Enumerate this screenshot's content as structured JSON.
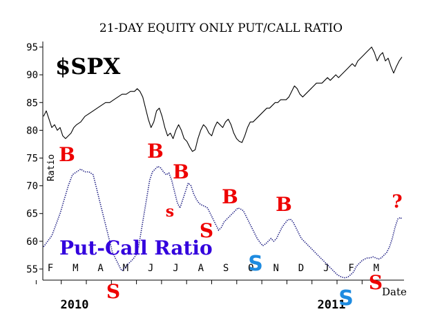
{
  "chart_data": {
    "type": "line",
    "title": "21-DAY EQUITY ONLY PUT/CALL RATIO",
    "ylabel": "Ratio",
    "xlabel": "Date",
    "ylim": [
      53,
      96
    ],
    "yticks": [
      55,
      60,
      65,
      70,
      75,
      80,
      85,
      90,
      95
    ],
    "month_labels": [
      "F",
      "M",
      "A",
      "M",
      "J",
      "J",
      "A",
      "S",
      "O",
      "N",
      "D",
      "J",
      "F",
      "M"
    ],
    "year_labels": [
      "2010",
      "2011"
    ],
    "grid": false,
    "series": [
      {
        "name": "$SPX",
        "color": "#000000",
        "points": [
          [
            0,
            82.5
          ],
          [
            2,
            83.5
          ],
          [
            4,
            82
          ],
          [
            6,
            80.5
          ],
          [
            8,
            81
          ],
          [
            10,
            80
          ],
          [
            12,
            80.5
          ],
          [
            14,
            79
          ],
          [
            16,
            78.5
          ],
          [
            18,
            79
          ],
          [
            20,
            79.5
          ],
          [
            22,
            80.5
          ],
          [
            24,
            81
          ],
          [
            27,
            81.5
          ],
          [
            30,
            82.5
          ],
          [
            33,
            83
          ],
          [
            36,
            83.5
          ],
          [
            39,
            84
          ],
          [
            42,
            84.5
          ],
          [
            45,
            85
          ],
          [
            48,
            85
          ],
          [
            51,
            85.5
          ],
          [
            54,
            86
          ],
          [
            57,
            86.5
          ],
          [
            60,
            86.5
          ],
          [
            63,
            87
          ],
          [
            66,
            87
          ],
          [
            68,
            87.5
          ],
          [
            70,
            87
          ],
          [
            72,
            86
          ],
          [
            74,
            84
          ],
          [
            76,
            82
          ],
          [
            78,
            80.5
          ],
          [
            80,
            81.5
          ],
          [
            82,
            83.5
          ],
          [
            84,
            84
          ],
          [
            86,
            82.5
          ],
          [
            88,
            80.5
          ],
          [
            90,
            79
          ],
          [
            92,
            79.5
          ],
          [
            94,
            78.5
          ],
          [
            96,
            80
          ],
          [
            98,
            81
          ],
          [
            100,
            80
          ],
          [
            102,
            78.5
          ],
          [
            104,
            78
          ],
          [
            106,
            77
          ],
          [
            108,
            76.2
          ],
          [
            110,
            76.5
          ],
          [
            112,
            78.5
          ],
          [
            114,
            80
          ],
          [
            116,
            81
          ],
          [
            118,
            80.5
          ],
          [
            120,
            79.5
          ],
          [
            122,
            79
          ],
          [
            124,
            80.5
          ],
          [
            126,
            81.5
          ],
          [
            128,
            81
          ],
          [
            130,
            80.5
          ],
          [
            132,
            81.5
          ],
          [
            134,
            82
          ],
          [
            136,
            81
          ],
          [
            138,
            79.5
          ],
          [
            140,
            78.5
          ],
          [
            142,
            78
          ],
          [
            144,
            77.8
          ],
          [
            146,
            79
          ],
          [
            148,
            80.5
          ],
          [
            150,
            81.5
          ],
          [
            152,
            81.5
          ],
          [
            154,
            82
          ],
          [
            156,
            82.5
          ],
          [
            158,
            83
          ],
          [
            160,
            83.5
          ],
          [
            162,
            84
          ],
          [
            164,
            84
          ],
          [
            166,
            84.5
          ],
          [
            168,
            85
          ],
          [
            170,
            85
          ],
          [
            172,
            85.5
          ],
          [
            174,
            85.5
          ],
          [
            176,
            85.5
          ],
          [
            178,
            86
          ],
          [
            180,
            87
          ],
          [
            182,
            88
          ],
          [
            184,
            87.5
          ],
          [
            186,
            86.5
          ],
          [
            188,
            86
          ],
          [
            190,
            86.5
          ],
          [
            192,
            87
          ],
          [
            194,
            87.5
          ],
          [
            196,
            88
          ],
          [
            198,
            88.5
          ],
          [
            200,
            88.5
          ],
          [
            202,
            88.5
          ],
          [
            204,
            89
          ],
          [
            206,
            89.5
          ],
          [
            208,
            89
          ],
          [
            210,
            89.5
          ],
          [
            212,
            90
          ],
          [
            214,
            89.5
          ],
          [
            216,
            90
          ],
          [
            218,
            90.5
          ],
          [
            220,
            91
          ],
          [
            222,
            91.5
          ],
          [
            224,
            92
          ],
          [
            226,
            91.5
          ],
          [
            228,
            92.5
          ],
          [
            230,
            93
          ],
          [
            232,
            93.5
          ],
          [
            234,
            94
          ],
          [
            236,
            94.5
          ],
          [
            238,
            95
          ],
          [
            240,
            94
          ],
          [
            242,
            92.5
          ],
          [
            244,
            93.5
          ],
          [
            246,
            94
          ],
          [
            248,
            92.5
          ],
          [
            250,
            93
          ],
          [
            252,
            91.5
          ],
          [
            254,
            90.3
          ],
          [
            256,
            91.5
          ],
          [
            258,
            92.5
          ],
          [
            260,
            93.2
          ]
        ]
      },
      {
        "name": "Put-Call Ratio",
        "color": "#1a1a80",
        "points": [
          [
            0,
            59
          ],
          [
            3,
            60
          ],
          [
            6,
            61
          ],
          [
            9,
            63
          ],
          [
            12,
            65
          ],
          [
            15,
            67.5
          ],
          [
            18,
            70
          ],
          [
            21,
            72
          ],
          [
            24,
            72.5
          ],
          [
            27,
            73
          ],
          [
            30,
            72.5
          ],
          [
            33,
            72.5
          ],
          [
            36,
            72
          ],
          [
            38,
            70
          ],
          [
            40,
            68
          ],
          [
            42,
            66
          ],
          [
            44,
            64
          ],
          [
            46,
            62
          ],
          [
            48,
            60
          ],
          [
            50,
            58
          ],
          [
            52,
            57
          ],
          [
            54,
            56
          ],
          [
            56,
            55
          ],
          [
            57,
            54.7
          ],
          [
            59,
            55.2
          ],
          [
            61,
            55.8
          ],
          [
            63,
            56.3
          ],
          [
            65,
            56.8
          ],
          [
            67,
            57.5
          ],
          [
            69,
            59
          ],
          [
            71,
            62
          ],
          [
            73,
            65
          ],
          [
            75,
            68
          ],
          [
            77,
            71
          ],
          [
            79,
            72.5
          ],
          [
            81,
            73
          ],
          [
            83,
            73.5
          ],
          [
            85,
            73.2
          ],
          [
            87,
            72.5
          ],
          [
            89,
            72
          ],
          [
            91,
            72.3
          ],
          [
            93,
            71
          ],
          [
            95,
            69
          ],
          [
            97,
            67
          ],
          [
            99,
            66
          ],
          [
            101,
            67.5
          ],
          [
            103,
            69
          ],
          [
            105,
            70.5
          ],
          [
            107,
            70
          ],
          [
            109,
            68.5
          ],
          [
            111,
            67.5
          ],
          [
            113,
            66.8
          ],
          [
            115,
            66.5
          ],
          [
            117,
            66.3
          ],
          [
            119,
            66
          ],
          [
            121,
            65
          ],
          [
            123,
            64
          ],
          [
            125,
            63
          ],
          [
            127,
            62
          ],
          [
            129,
            62.5
          ],
          [
            131,
            63.5
          ],
          [
            133,
            64
          ],
          [
            135,
            64.5
          ],
          [
            137,
            65
          ],
          [
            139,
            65.5
          ],
          [
            141,
            66
          ],
          [
            143,
            65.8
          ],
          [
            145,
            65.5
          ],
          [
            147,
            64.5
          ],
          [
            149,
            63.5
          ],
          [
            151,
            62.5
          ],
          [
            153,
            61.5
          ],
          [
            155,
            60.5
          ],
          [
            157,
            59.8
          ],
          [
            159,
            59.2
          ],
          [
            161,
            59.5
          ],
          [
            163,
            60
          ],
          [
            165,
            60.5
          ],
          [
            167,
            60
          ],
          [
            169,
            60.5
          ],
          [
            171,
            61.5
          ],
          [
            173,
            62.5
          ],
          [
            175,
            63.2
          ],
          [
            177,
            63.8
          ],
          [
            179,
            64
          ],
          [
            181,
            63.5
          ],
          [
            183,
            62.5
          ],
          [
            185,
            61.5
          ],
          [
            187,
            60.5
          ],
          [
            189,
            60
          ],
          [
            191,
            59.5
          ],
          [
            193,
            59
          ],
          [
            195,
            58.5
          ],
          [
            197,
            58
          ],
          [
            199,
            57.5
          ],
          [
            201,
            57
          ],
          [
            203,
            56.5
          ],
          [
            205,
            56
          ],
          [
            207,
            55.5
          ],
          [
            209,
            55
          ],
          [
            211,
            54.5
          ],
          [
            213,
            54
          ],
          [
            215,
            53.7
          ],
          [
            217,
            53.5
          ],
          [
            219,
            53.4
          ],
          [
            221,
            53.6
          ],
          [
            223,
            54
          ],
          [
            225,
            54.5
          ],
          [
            227,
            55.5
          ],
          [
            229,
            56
          ],
          [
            231,
            56.5
          ],
          [
            233,
            56.8
          ],
          [
            235,
            57
          ],
          [
            237,
            57
          ],
          [
            239,
            57.2
          ],
          [
            241,
            57
          ],
          [
            243,
            56.8
          ],
          [
            245,
            57
          ],
          [
            247,
            57.5
          ],
          [
            249,
            58
          ],
          [
            251,
            59
          ],
          [
            253,
            60.5
          ],
          [
            255,
            62.5
          ],
          [
            257,
            64
          ],
          [
            259,
            64.3
          ],
          [
            260,
            64
          ]
        ]
      }
    ],
    "annotations": [
      {
        "text": "$SPX",
        "color": "#000000"
      },
      {
        "text": "Put-Call Ratio",
        "color": "#3300dd"
      },
      {
        "text": "B",
        "color": "#ee0000"
      },
      {
        "text": "B",
        "color": "#ee0000"
      },
      {
        "text": "B",
        "color": "#ee0000"
      },
      {
        "text": "B",
        "color": "#ee0000"
      },
      {
        "text": "B",
        "color": "#ee0000"
      },
      {
        "text": "s",
        "color": "#ee0000"
      },
      {
        "text": "S",
        "color": "#ee0000"
      },
      {
        "text": "S",
        "color": "#ee0000"
      },
      {
        "text": "S",
        "color": "#ee0000"
      },
      {
        "text": "S",
        "color": "#1e8be0"
      },
      {
        "text": "S",
        "color": "#1e8be0"
      },
      {
        "text": "?",
        "color": "#ee0000"
      }
    ]
  }
}
